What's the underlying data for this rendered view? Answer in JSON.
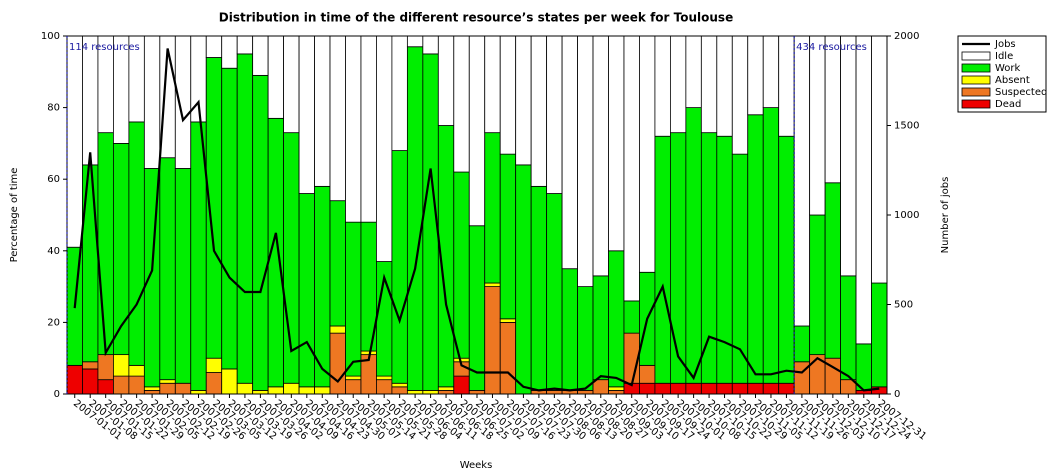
{
  "chart_data": {
    "type": "bar",
    "stacked": true,
    "title": "Distribution in time of the different resource’s states per week for Toulouse",
    "x_label": "Weeks",
    "y_label": "Percentage of time",
    "y2_label": "Number of jobs",
    "annotations": [
      "114 resources",
      "434 resources"
    ],
    "categories": [
      "2007-01-01",
      "2007-01-08",
      "2007-01-15",
      "2007-01-22",
      "2007-01-29",
      "2007-02-05",
      "2007-02-12",
      "2007-02-19",
      "2007-02-26",
      "2007-03-05",
      "2007-03-12",
      "2007-03-19",
      "2007-03-26",
      "2007-04-02",
      "2007-04-09",
      "2007-04-16",
      "2007-04-23",
      "2007-04-30",
      "2007-05-07",
      "2007-05-14",
      "2007-05-21",
      "2007-05-28",
      "2007-06-04",
      "2007-06-11",
      "2007-06-18",
      "2007-06-25",
      "2007-07-02",
      "2007-07-09",
      "2007-07-16",
      "2007-07-23",
      "2007-07-30",
      "2007-08-06",
      "2007-08-13",
      "2007-08-20",
      "2007-08-27",
      "2007-09-03",
      "2007-09-10",
      "2007-09-17",
      "2007-09-24",
      "2007-10-01",
      "2007-10-08",
      "2007-10-15",
      "2007-10-22",
      "2007-10-29",
      "2007-11-05",
      "2007-11-12",
      "2007-11-19",
      "2007-11-26",
      "2007-12-03",
      "2007-12-10",
      "2007-12-17",
      "2007-12-24",
      "2007-12-31"
    ],
    "series": [
      {
        "name": "Jobs",
        "type": "line",
        "axis": "y2",
        "color": "#000000",
        "values": [
          480,
          1350,
          230,
          380,
          500,
          690,
          1930,
          1530,
          1630,
          800,
          650,
          570,
          570,
          900,
          240,
          290,
          140,
          70,
          180,
          190,
          650,
          410,
          700,
          1260,
          500,
          160,
          120,
          120,
          120,
          40,
          20,
          30,
          20,
          30,
          100,
          90,
          50,
          420,
          600,
          210,
          90,
          320,
          290,
          250,
          110,
          110,
          130,
          120,
          200,
          150,
          100,
          20,
          30
        ]
      },
      {
        "name": "Idle",
        "color": "#ffffff",
        "values": [
          59,
          36,
          27,
          30,
          24,
          37,
          34,
          37,
          24,
          6,
          9,
          5,
          11,
          23,
          27,
          44,
          42,
          46,
          52,
          52,
          63,
          32,
          3,
          5,
          25,
          38,
          53,
          27,
          33,
          36,
          42,
          44,
          65,
          70,
          67,
          60,
          74,
          66,
          28,
          27,
          20,
          27,
          28,
          33,
          22,
          20,
          28,
          81,
          50,
          41,
          67,
          86,
          69
        ]
      },
      {
        "name": "Work",
        "color": "#00ee00",
        "values": [
          33,
          55,
          62,
          59,
          68,
          61,
          62,
          60,
          75,
          84,
          84,
          92,
          88,
          75,
          70,
          54,
          56,
          35,
          43,
          36,
          32,
          65,
          96,
          94,
          73,
          52,
          46,
          42,
          46,
          64,
          57,
          55,
          34,
          29,
          29,
          38,
          9,
          26,
          69,
          70,
          77,
          70,
          69,
          64,
          75,
          77,
          69,
          10,
          39,
          49,
          29,
          13,
          29
        ]
      },
      {
        "name": "Absent",
        "color": "#ffff00",
        "values": [
          0,
          0,
          0,
          6,
          3,
          1,
          1,
          0,
          1,
          4,
          7,
          3,
          1,
          2,
          3,
          2,
          2,
          2,
          1,
          1,
          1,
          1,
          1,
          1,
          1,
          1,
          0,
          1,
          1,
          0,
          0,
          0,
          0,
          0,
          0,
          1,
          0,
          0,
          0,
          0,
          0,
          0,
          0,
          0,
          0,
          0,
          0,
          0,
          0,
          0,
          0,
          0,
          0
        ]
      },
      {
        "name": "Suspected",
        "color": "#ee7722",
        "values": [
          0,
          2,
          7,
          5,
          5,
          1,
          3,
          3,
          0,
          6,
          0,
          0,
          0,
          0,
          0,
          0,
          0,
          17,
          4,
          11,
          4,
          2,
          0,
          0,
          1,
          4,
          1,
          30,
          20,
          0,
          1,
          1,
          1,
          1,
          4,
          1,
          14,
          5,
          0,
          0,
          0,
          0,
          0,
          0,
          0,
          0,
          0,
          9,
          11,
          10,
          4,
          0,
          0
        ]
      },
      {
        "name": "Dead",
        "color": "#ee0000",
        "values": [
          8,
          7,
          4,
          0,
          0,
          0,
          0,
          0,
          0,
          0,
          0,
          0,
          0,
          0,
          0,
          0,
          0,
          0,
          0,
          0,
          0,
          0,
          0,
          0,
          0,
          5,
          0,
          0,
          0,
          0,
          0,
          0,
          0,
          0,
          0,
          0,
          3,
          3,
          3,
          3,
          3,
          3,
          3,
          3,
          3,
          3,
          3,
          0,
          0,
          0,
          0,
          1,
          2
        ]
      }
    ],
    "ylim": [
      0,
      100
    ],
    "yticks": [
      0,
      20,
      40,
      60,
      80,
      100
    ],
    "y2lim": [
      0,
      2000
    ],
    "y2ticks": [
      0,
      500,
      1000,
      1500,
      2000
    ],
    "legend": "outside-right"
  }
}
